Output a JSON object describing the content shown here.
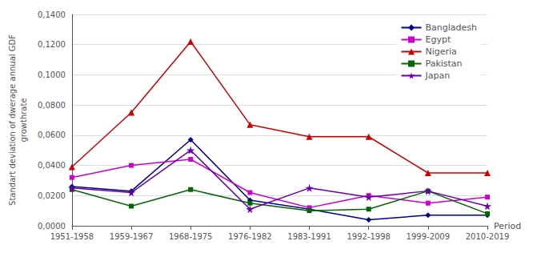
{
  "chart_data": {
    "type": "line",
    "categories": [
      "1951-1958",
      "1959-1967",
      "1968-1975",
      "1976-1982",
      "1983-1991",
      "1992-1998",
      "1999-2009",
      "2010-2019"
    ],
    "series": [
      {
        "name": "Bangladesh",
        "color": "#00008B",
        "marker": "diamond",
        "values": [
          0.026,
          0.023,
          0.057,
          0.017,
          0.011,
          0.004,
          0.007,
          0.007
        ]
      },
      {
        "name": "Egypt",
        "color": "#CC00CC",
        "marker": "square",
        "values": [
          0.032,
          0.04,
          0.044,
          0.022,
          0.012,
          0.02,
          0.015,
          0.019
        ]
      },
      {
        "name": "Nigeria",
        "color": "#CC0000",
        "marker": "triangle",
        "values": [
          0.039,
          0.075,
          0.122,
          0.067,
          0.059,
          0.059,
          0.035,
          0.035
        ]
      },
      {
        "name": "Pakistan",
        "color": "#006600",
        "marker": "square",
        "values": [
          0.024,
          0.013,
          0.024,
          0.015,
          0.01,
          0.011,
          0.023,
          0.008
        ]
      },
      {
        "name": "Japan",
        "color": "#6600AA",
        "marker": "star",
        "values": [
          0.025,
          0.022,
          0.05,
          0.011,
          0.025,
          0.019,
          0.023,
          0.013
        ]
      }
    ],
    "xlabel": "Period",
    "ylabel": "Standart deviation of dwerage annual GDF\ngrowthrate",
    "ylim": [
      0.0,
      0.14
    ],
    "yticks": [
      {
        "value": 0.0,
        "label": "0,0000"
      },
      {
        "value": 0.02,
        "label": "0,0200"
      },
      {
        "value": 0.04,
        "label": "0,0400"
      },
      {
        "value": 0.06,
        "label": "0,0600"
      },
      {
        "value": 0.08,
        "label": "0,0800"
      },
      {
        "value": 0.1,
        "label": "0,1000"
      },
      {
        "value": 0.12,
        "label": "0,1200"
      },
      {
        "value": 0.14,
        "label": "0,1400"
      }
    ],
    "grid": true,
    "legend": "upper right"
  }
}
